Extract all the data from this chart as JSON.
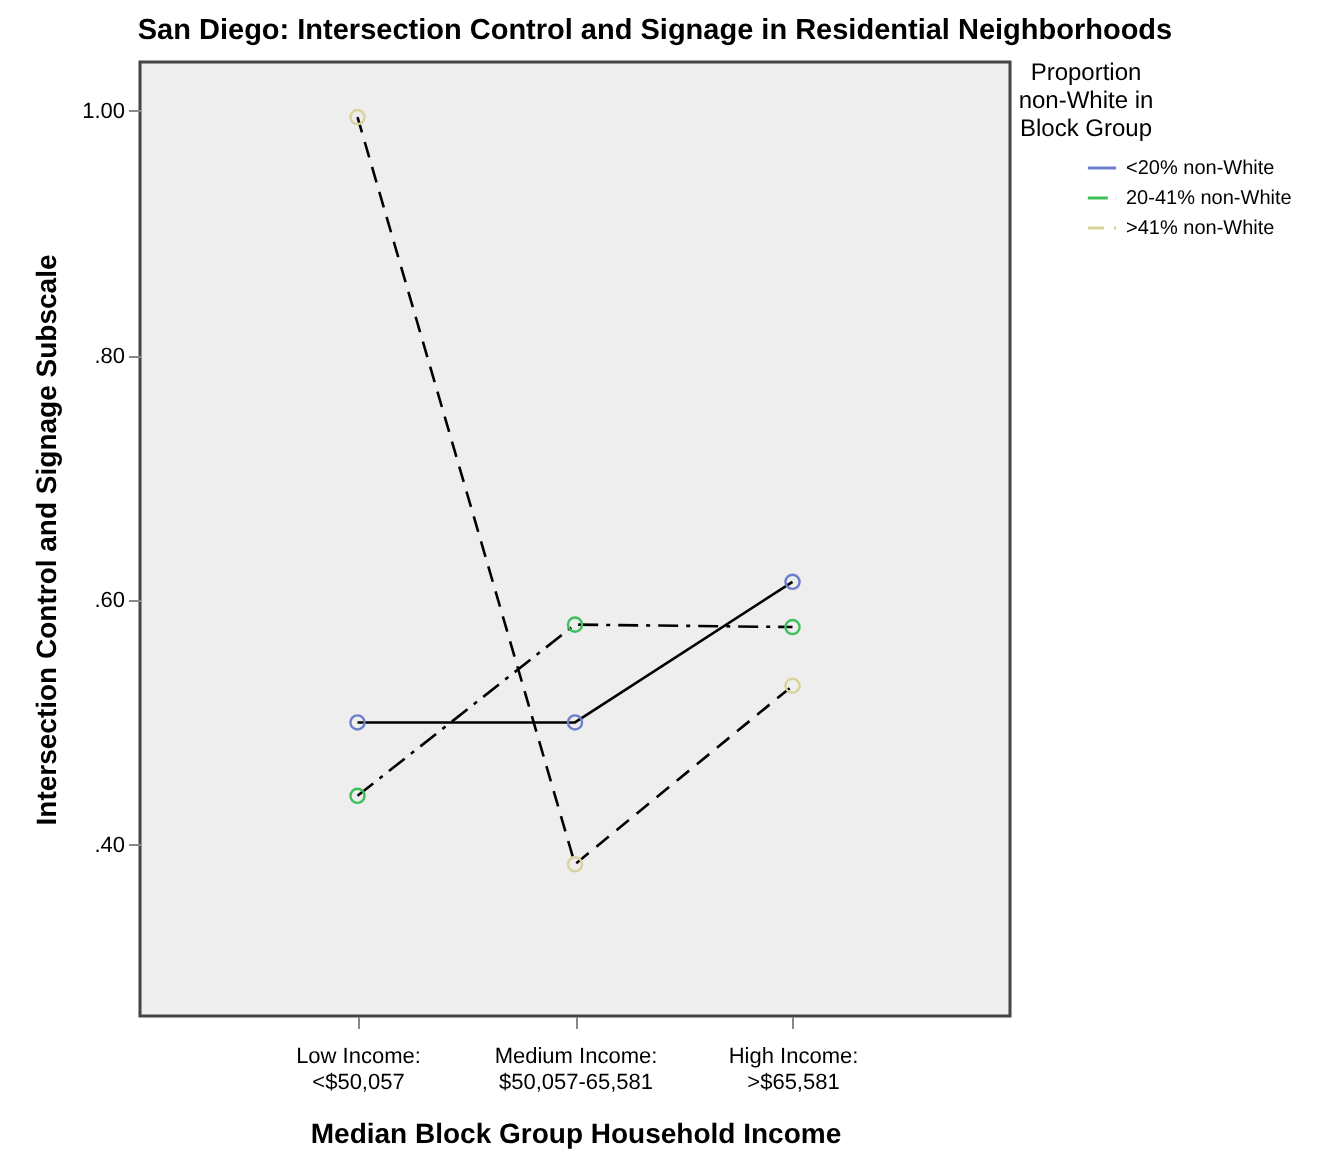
{
  "chart_data": {
    "type": "line",
    "title": "San Diego: Intersection Control and Signage in Residential Neighborhoods",
    "xlabel": "Median Block Group Household Income",
    "ylabel": "Intersection Control and Signage Subscale",
    "legend_title": "Proportion non-White in Block Group",
    "categories": [
      "Low Income: <$50,057",
      "Medium Income: $50,057-65,581",
      "High Income: >$65,581"
    ],
    "series": [
      {
        "name": "<20% non-White",
        "color": "#6c7fc9",
        "line_style": "solid",
        "values": [
          0.5,
          0.5,
          0.615
        ]
      },
      {
        "name": "20-41% non-White",
        "color": "#3fbf5a",
        "line_style": "dashdot",
        "values": [
          0.44,
          0.58,
          0.578
        ]
      },
      {
        "name": ">41% non-White",
        "color": "#d8d39a",
        "line_style": "dashed",
        "values": [
          0.995,
          0.384,
          0.53
        ]
      }
    ],
    "ylim": [
      0.26,
      1.04
    ],
    "yticks": [
      {
        "value": 0.4,
        "label": ".40"
      },
      {
        "value": 0.6,
        "label": ".60"
      },
      {
        "value": 0.8,
        "label": ".80"
      },
      {
        "value": 1.0,
        "label": "1.00"
      }
    ],
    "grid": false,
    "legend": "top right",
    "marker": "circle"
  }
}
